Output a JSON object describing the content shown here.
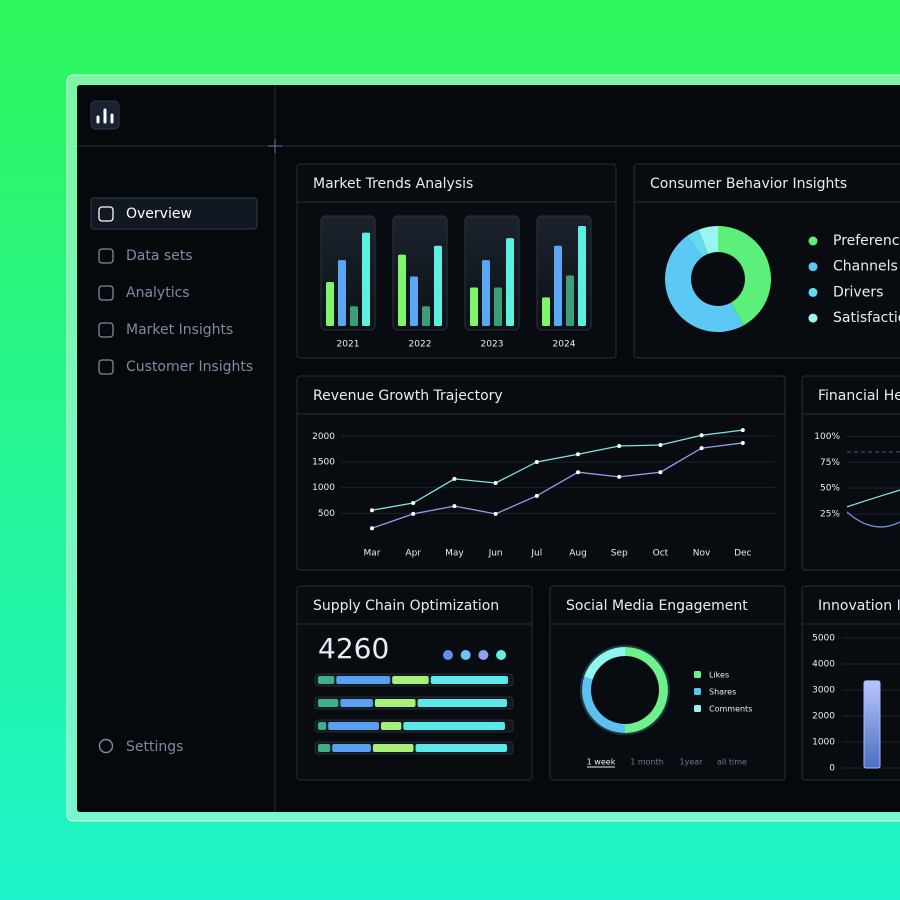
{
  "sidebar": {
    "nav": [
      "Overview",
      "Data sets",
      "Analytics",
      "Market Insights",
      "Customer Insights"
    ],
    "active": 0,
    "settings": "Settings"
  },
  "market_trends": {
    "type": "bar",
    "title": "Market Trends Analysis",
    "categories": [
      "2021",
      "2022",
      "2023",
      "2024"
    ],
    "series": [
      {
        "color": "#7ef56a",
        "values": [
          40,
          65,
          35,
          26
        ]
      },
      {
        "color": "#5aa8f5",
        "values": [
          60,
          45,
          60,
          73
        ]
      },
      {
        "color": "#3f9e78",
        "values": [
          18,
          18,
          35,
          46
        ]
      },
      {
        "color": "#5cf0e0",
        "values": [
          85,
          73,
          80,
          91
        ]
      }
    ]
  },
  "consumer_behavior": {
    "type": "pie",
    "title": "Consumer Behavior Insights",
    "categories": [
      "Preference",
      "Channels",
      "Drivers",
      "Satisfactio"
    ],
    "values": [
      42,
      48,
      4,
      6
    ],
    "colors": [
      "#5cf07a",
      "#5cc8f5",
      "#62dcec",
      "#9af5ee"
    ]
  },
  "revenue_growth": {
    "type": "line",
    "title": "Revenue Growth Trajectory",
    "categories": [
      "Mar",
      "Apr",
      "May",
      "Jun",
      "Jul",
      "Aug",
      "Sep",
      "Oct",
      "Nov",
      "Dec"
    ],
    "series": [
      {
        "color": "#7fe8d8",
        "values": [
          560,
          700,
          1170,
          1090,
          1500,
          1650,
          1810,
          1830,
          2020,
          2120
        ]
      },
      {
        "color": "#8f9ff0",
        "values": [
          210,
          490,
          640,
          490,
          840,
          1300,
          1210,
          1300,
          1770,
          1870
        ]
      }
    ],
    "ylim": [
      0,
      2200
    ],
    "yticks": [
      500,
      1000,
      1500,
      2000
    ],
    "grid": true
  },
  "financial_health": {
    "type": "line",
    "title": "Financial He",
    "categories": [
      null,
      null,
      null
    ],
    "series": [
      {
        "color": "#7fe8d8",
        "values": [
          32,
          41,
          49
        ]
      },
      {
        "color": "#6f8fe0",
        "values": [
          27,
          3,
          19
        ]
      },
      {
        "color": "#3a4656",
        "dashed": true,
        "values": [
          85,
          85,
          85
        ]
      }
    ],
    "ylim": [
      0,
      110
    ],
    "yticks": [
      {
        "value": 25,
        "label": "25%"
      },
      {
        "value": 50,
        "label": "50%"
      },
      {
        "value": 75,
        "label": "75%"
      },
      {
        "value": 100,
        "label": "100%"
      }
    ],
    "grid": true
  },
  "supply_chain": {
    "type": "stacked-bar",
    "title": "Supply Chain Optimization",
    "total": 4260,
    "dot_colors": [
      "#5b8ff0",
      "#6ec4f5",
      "#8f9ff5",
      "#5ef0e0"
    ],
    "colors": [
      "#3fae8a",
      "#5aa0f0",
      "#a8f07a",
      "#5ce8e8"
    ],
    "rows": [
      [
        18,
        55,
        38,
        78
      ],
      [
        22,
        34,
        42,
        90
      ],
      [
        10,
        52,
        22,
        102
      ],
      [
        14,
        40,
        42,
        92
      ]
    ]
  },
  "social_media": {
    "type": "pie",
    "title": "Social Media Engagement",
    "categories": [
      "Likes",
      "Shares",
      "Comments"
    ],
    "values": [
      50,
      30,
      20
    ],
    "colors": [
      "#6ef08a",
      "#5cc0f0",
      "#8ff5ee"
    ],
    "periods": [
      "1 week",
      "1 month",
      "1year",
      "all time"
    ],
    "active_period": 0
  },
  "innovation": {
    "type": "bar",
    "title": "Innovation In",
    "categories": [
      null
    ],
    "values": [
      3350
    ],
    "color": "#a9b8ff",
    "ylim": [
      0,
      5000
    ],
    "yticks": [
      0,
      1000,
      2000,
      3000,
      4000,
      5000
    ],
    "grid": true
  }
}
